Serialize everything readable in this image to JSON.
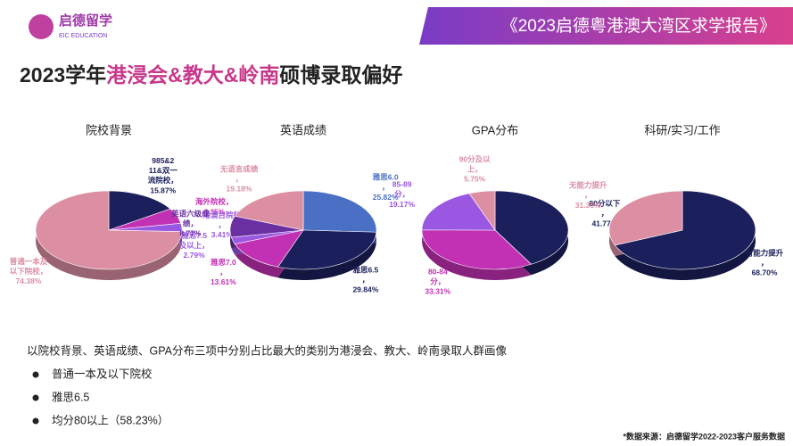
{
  "logo": {
    "name": "启德留学",
    "sub": "EIC EDUCATION"
  },
  "header": "《2023启德粤港澳大湾区求学报告》",
  "title": {
    "prefix": "2023学年",
    "highlight": "港浸会&教大&岭南",
    "suffix": "硕博录取偏好"
  },
  "chart_data": [
    {
      "type": "pie",
      "title": "院校背景",
      "categories": [
        "985&211&双一流院校，",
        "海外院校，",
        "港澳台院校，",
        "普通一本及以下院校，"
      ],
      "values": [
        15.87,
        6.35,
        3.41,
        74.38
      ],
      "value_labels": [
        "15.87%",
        "6.35%",
        "3.41%",
        "74.38%"
      ],
      "colors": [
        "#1b1f5c",
        "#c231b4",
        "#9a57e2",
        "#dc8ea3"
      ]
    },
    {
      "type": "pie",
      "title": "英语成绩",
      "categories": [
        "雅思6.0，",
        "雅思6.5，",
        "雅思7.0，",
        "雅思7.5及以上，",
        "英语六级成绩，",
        "无语言成绩，"
      ],
      "values": [
        25.82,
        29.84,
        13.61,
        2.79,
        8.77,
        19.18
      ],
      "value_labels": [
        "25.82%",
        "29.84%",
        "13.61%",
        "2.79%",
        "8.77%",
        "19.18%"
      ],
      "colors": [
        "#4a70c6",
        "#1b1f5c",
        "#c231b4",
        "#9a57e2",
        "#6a2fa0",
        "#dc8ea3"
      ]
    },
    {
      "type": "pie",
      "title": "GPA分布",
      "categories": [
        "80分以下，",
        "80-84分，",
        "85-89分，",
        "90分及以上，"
      ],
      "values": [
        41.77,
        33.31,
        19.17,
        5.75
      ],
      "value_labels": [
        "41.77%",
        "33.31%",
        "19.17%",
        "5.75%"
      ],
      "colors": [
        "#1b1f5c",
        "#c231b4",
        "#9a57e2",
        "#dc8ea3"
      ]
    },
    {
      "type": "pie",
      "title": "科研/实习/工作",
      "categories": [
        "有能力提升，",
        "无能力提升，"
      ],
      "values": [
        68.7,
        31.3
      ],
      "value_labels": [
        "68.70%",
        "31.30%"
      ],
      "colors": [
        "#1b1f5c",
        "#dc8ea3"
      ]
    }
  ],
  "notes": {
    "intro": "以院校背景、英语成绩、GPA分布三项中分别占比最大的类别为港浸会、教大、岭南录取人群画像",
    "items": [
      "普通一本及以下院校",
      "雅思6.5",
      "均分80以上（58.23%）"
    ]
  },
  "source": "*数据来源：启德留学2022-2023客户服务数据"
}
